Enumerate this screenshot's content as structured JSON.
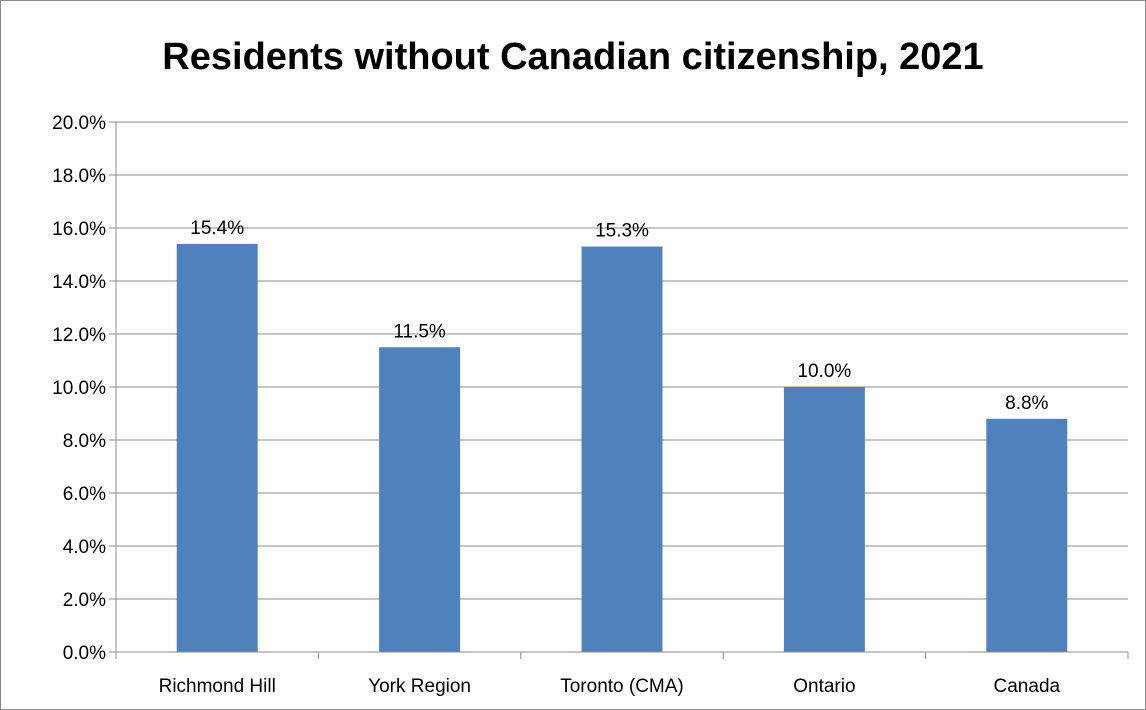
{
  "chart_data": {
    "type": "bar",
    "title": "Residents without Canadian citizenship, 2021",
    "categories": [
      "Richmond Hill",
      "York Region",
      "Toronto (CMA)",
      "Ontario",
      "Canada"
    ],
    "values": [
      15.4,
      11.5,
      15.3,
      10.0,
      8.8
    ],
    "data_labels": [
      "15.4%",
      "11.5%",
      "15.3%",
      "10.0%",
      "8.8%"
    ],
    "ylim": [
      0,
      20
    ],
    "yticks": [
      0,
      2,
      4,
      6,
      8,
      10,
      12,
      14,
      16,
      18,
      20
    ],
    "ytick_labels": [
      "0.0%",
      "2.0%",
      "4.0%",
      "6.0%",
      "8.0%",
      "10.0%",
      "12.0%",
      "14.0%",
      "16.0%",
      "18.0%",
      "20.0%"
    ],
    "xlabel": "",
    "ylabel": "",
    "grid": true,
    "legend": "none",
    "bar_color": "#4f81bd",
    "grid_color": "#8c8c8c"
  }
}
